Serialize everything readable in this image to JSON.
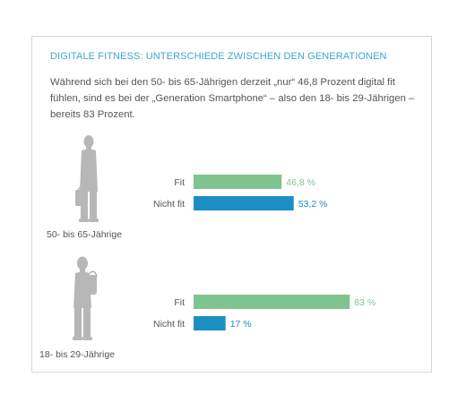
{
  "title": "DIGITALE FITNESS: UNTERSCHIEDE ZWISCHEN DEN GENERATIONEN",
  "intro": "Während sich bei den 50- bis 65-Jährigen derzeit „nur“ 46,8 Prozent digital fit fühlen, sind es bei der „Generation Smartphone“ – also den 18- bis 29-Jährigen – bereits 83 Prozent.",
  "colors": {
    "fit": "#7fc48f",
    "nicht_fit": "#1b8fc4",
    "figure": "#b7b7b7",
    "title": "#3aa7d5"
  },
  "chart_data": {
    "type": "bar",
    "orientation": "horizontal",
    "unit": "%",
    "xlim": [
      0,
      100
    ],
    "groups": [
      {
        "name": "50- bis 65-Jährige",
        "icon": "older-man-with-briefcase-icon",
        "bars": [
          {
            "label": "Fit",
            "value": 46.8,
            "display": "46,8 %",
            "color_key": "fit"
          },
          {
            "label": "Nicht fit",
            "value": 53.2,
            "display": "53,2 %",
            "color_key": "nicht_fit"
          }
        ]
      },
      {
        "name": "18- bis 29-Jährige",
        "icon": "young-man-with-backpack-icon",
        "bars": [
          {
            "label": "Fit",
            "value": 83,
            "display": "83 %",
            "color_key": "fit"
          },
          {
            "label": "Nicht fit",
            "value": 17,
            "display": "17 %",
            "color_key": "nicht_fit"
          }
        ]
      }
    ]
  }
}
